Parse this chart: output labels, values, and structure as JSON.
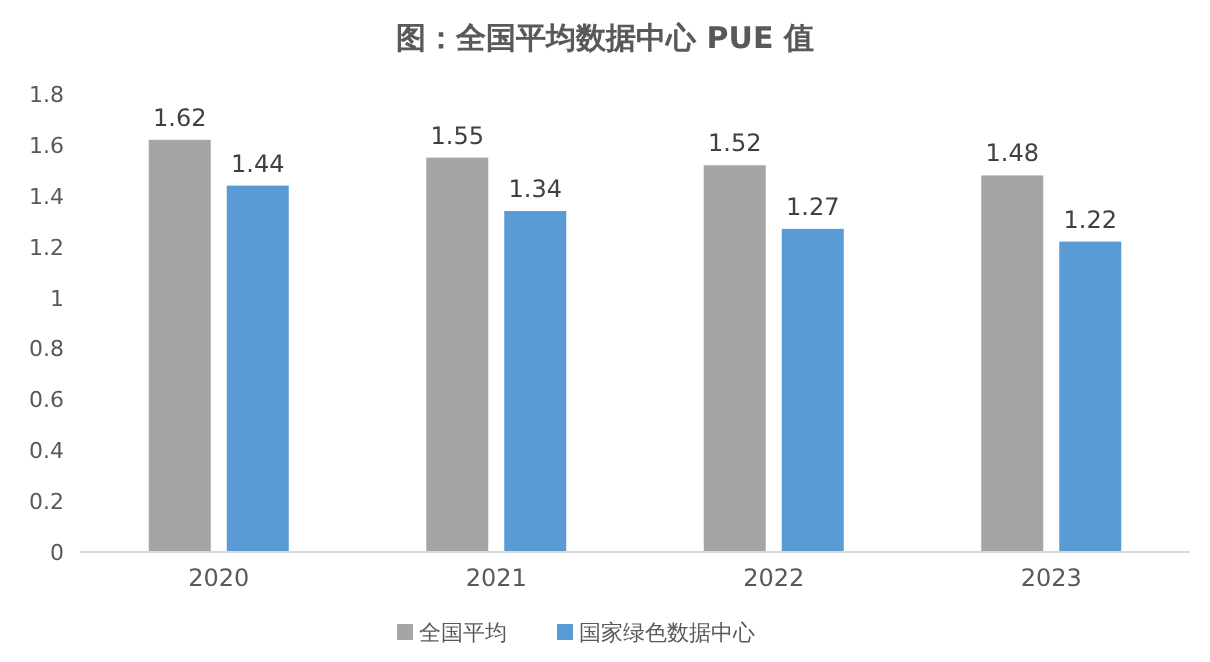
{
  "chart_data": {
    "type": "bar",
    "title": "图：全国平均数据中心 PUE 值",
    "categories": [
      "2020",
      "2021",
      "2022",
      "2023"
    ],
    "series": [
      {
        "name": "全国平均",
        "color": "#a5a5a5",
        "values": [
          1.62,
          1.55,
          1.52,
          1.48
        ]
      },
      {
        "name": "国家绿色数据中心",
        "color": "#5b9bd5",
        "values": [
          1.44,
          1.34,
          1.27,
          1.22
        ]
      }
    ],
    "ylim": [
      0,
      1.8
    ],
    "yticks": [
      0,
      0.2,
      0.4,
      0.6,
      0.8,
      1,
      1.2,
      1.4,
      1.6,
      1.8
    ],
    "data_labels": true,
    "legend": "bottom",
    "grid": false
  }
}
